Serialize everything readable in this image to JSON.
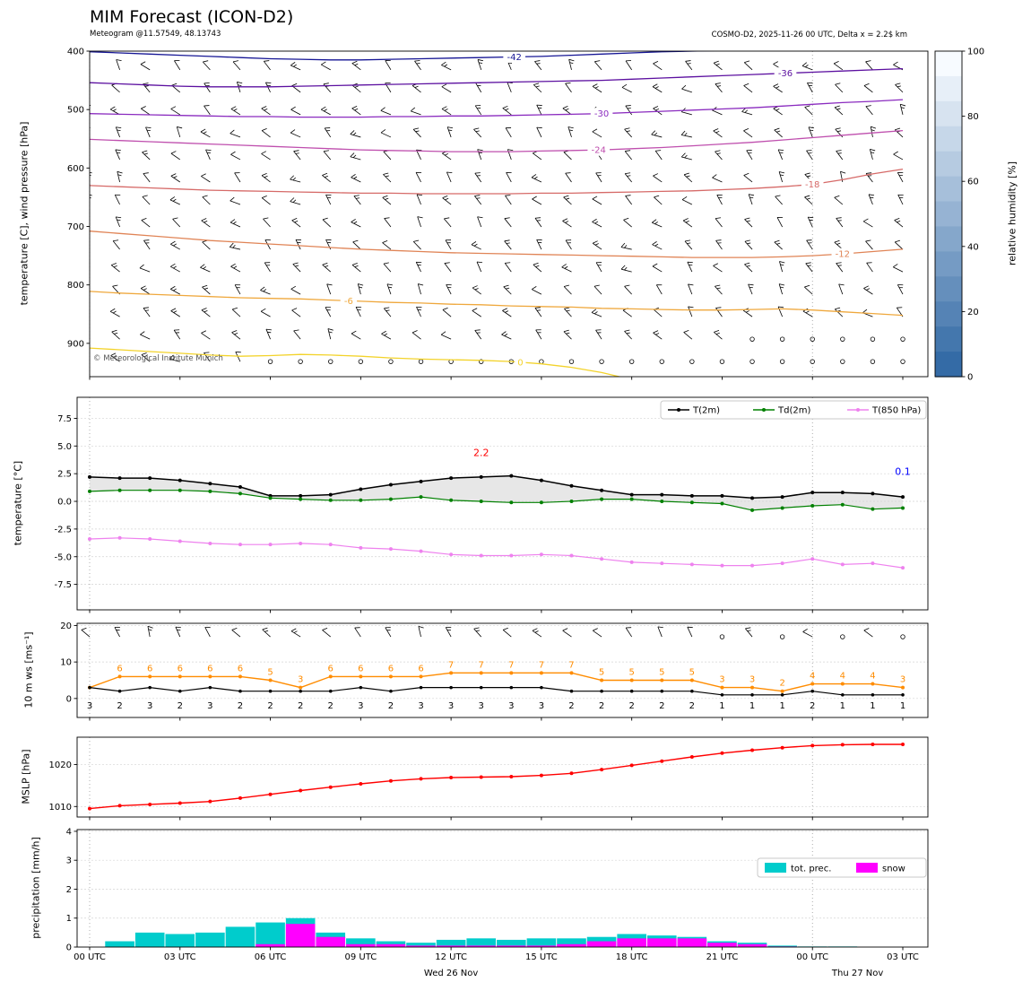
{
  "header": {
    "title": "MIM Forecast (ICON-D2)",
    "subtitle_left": "Meteogram @11.57549, 48.13743",
    "subtitle_right": "COSMO-D2, 2025-11-26 00 UTC, Delta x = 2.2$ km",
    "copyright": "© Meteorological Institute Munich"
  },
  "time_axis": {
    "tick_hours": [
      0,
      3,
      6,
      9,
      12,
      15,
      18,
      21,
      24,
      27
    ],
    "tick_labels": [
      "00 UTC",
      "03 UTC",
      "06 UTC",
      "09 UTC",
      "12 UTC",
      "15 UTC",
      "18 UTC",
      "21 UTC",
      "00 UTC",
      "03 UTC"
    ],
    "day_labels": [
      {
        "text": "Wed 26 Nov",
        "hour": 12
      },
      {
        "text": "Thu 27 Nov",
        "hour": 25.5
      }
    ]
  },
  "chart_data": [
    {
      "type": "contour+windbarbs",
      "name": "upper-air",
      "ylabel": "temperature [C], wind pressure [hPa]",
      "yticks": [
        400,
        500,
        600,
        700,
        800,
        900
      ],
      "ytick_labels": [
        "400",
        "500",
        "600",
        "700",
        "800",
        "900"
      ],
      "ylim": [
        400,
        957
      ],
      "contours": [
        {
          "label": "-42",
          "color": "#161695",
          "label_hour": 14.1,
          "pressures": [
            401,
            403,
            405,
            407,
            409,
            411,
            413,
            414,
            415,
            415,
            414,
            413,
            412,
            411,
            410,
            409,
            407,
            405,
            403,
            401,
            400,
            399,
            398,
            397,
            396,
            394,
            392,
            390
          ]
        },
        {
          "label": "-36",
          "color": "#5c10a0",
          "label_hour": 23.1,
          "pressures": [
            454,
            456,
            458,
            460,
            461,
            461,
            461,
            460,
            459,
            458,
            457,
            456,
            455,
            454,
            453,
            452,
            451,
            450,
            448,
            446,
            444,
            442,
            440,
            438,
            436,
            434,
            432,
            430
          ]
        },
        {
          "label": "-30",
          "color": "#8a2bbf",
          "label_hour": 17.0,
          "pressures": [
            507,
            508,
            509,
            510,
            511,
            512,
            512,
            513,
            513,
            513,
            512,
            512,
            511,
            511,
            510,
            509,
            508,
            507,
            505,
            503,
            501,
            499,
            497,
            494,
            491,
            488,
            486,
            483
          ]
        },
        {
          "label": "-24",
          "color": "#bf4fae",
          "label_hour": 16.9,
          "pressures": [
            551,
            553,
            555,
            557,
            559,
            561,
            563,
            565,
            567,
            569,
            570,
            571,
            572,
            572,
            572,
            571,
            570,
            569,
            567,
            565,
            562,
            559,
            556,
            552,
            548,
            544,
            540,
            536
          ]
        },
        {
          "label": "-18",
          "color": "#d66a68",
          "label_hour": 24.0,
          "pressures": [
            630,
            632,
            634,
            636,
            638,
            639,
            640,
            641,
            642,
            643,
            643,
            644,
            644,
            644,
            644,
            643,
            643,
            642,
            641,
            640,
            639,
            637,
            635,
            632,
            628,
            620,
            610,
            602
          ]
        },
        {
          "label": "-12",
          "color": "#e08456",
          "label_hour": 25.0,
          "pressures": [
            708,
            712,
            716,
            720,
            724,
            727,
            730,
            733,
            736,
            739,
            741,
            743,
            745,
            746,
            747,
            748,
            749,
            750,
            751,
            752,
            753,
            753,
            753,
            752,
            750,
            747,
            743,
            739
          ]
        },
        {
          "label": "-6",
          "color": "#efa83d",
          "label_hour": 8.6,
          "pressures": [
            811,
            814,
            816,
            818,
            820,
            822,
            823,
            824,
            826,
            828,
            830,
            831,
            833,
            834,
            836,
            837,
            838,
            840,
            841,
            842,
            843,
            843,
            842,
            841,
            843,
            846,
            849,
            852
          ]
        },
        {
          "label": "0",
          "color": "#f3d32b",
          "label_hour": 14.3,
          "pressures": [
            908,
            911,
            914,
            917,
            920,
            922,
            921,
            919,
            920,
            922,
            925,
            927,
            928,
            929,
            931,
            935,
            941,
            950,
            962,
            null,
            null,
            null,
            null,
            null,
            null,
            null,
            null,
            null
          ]
        }
      ],
      "windbarbs": {
        "rows": 14,
        "cols": 28,
        "top_pressure": 432,
        "row_step": 38.4,
        "calm_rows": [
          {
            "row": 12,
            "from_col": 22
          },
          {
            "row": 13,
            "from_col": 6
          }
        ]
      },
      "colorbar": {
        "label": "relative humidity [%]",
        "ticks": [
          0,
          20,
          40,
          60,
          80,
          100
        ],
        "tick_labels": [
          "0",
          "20",
          "40",
          "60",
          "80",
          "100"
        ],
        "color_light": "#f7fbff",
        "color_dark": "#346ba6",
        "steps": 13
      }
    },
    {
      "type": "line",
      "name": "temperature-2m",
      "ylabel": "temperature [°C]",
      "yticks": [
        7.5,
        5.0,
        2.5,
        0.0,
        -2.5,
        -5.0,
        -7.5
      ],
      "ytick_labels": [
        "7.5",
        "5.0",
        "2.5",
        "0.0",
        "-2.5",
        "-5.0",
        "-7.5"
      ],
      "ylim": [
        -9.8,
        9.4
      ],
      "series": [
        {
          "name": "T(2m)",
          "color": "#000000",
          "values": [
            2.2,
            2.1,
            2.1,
            1.9,
            1.6,
            1.3,
            0.5,
            0.5,
            0.6,
            1.1,
            1.5,
            1.8,
            2.1,
            2.2,
            2.3,
            1.9,
            1.4,
            1.0,
            0.6,
            0.6,
            0.5,
            0.5,
            0.3,
            0.4,
            0.8,
            0.8,
            0.7,
            0.4
          ]
        },
        {
          "name": "Td(2m)",
          "color": "#008000",
          "values": [
            0.9,
            1.0,
            1.0,
            1.0,
            0.9,
            0.7,
            0.3,
            0.2,
            0.1,
            0.1,
            0.2,
            0.4,
            0.1,
            0.0,
            -0.1,
            -0.1,
            0.0,
            0.2,
            0.2,
            0.0,
            -0.1,
            -0.2,
            -0.8,
            -0.6,
            -0.4,
            -0.3,
            -0.7,
            -0.6
          ]
        },
        {
          "name": "T(850 hPa)",
          "color": "#ee82ee",
          "values": [
            -3.4,
            -3.3,
            -3.4,
            -3.6,
            -3.8,
            -3.9,
            -3.9,
            -3.8,
            -3.9,
            -4.2,
            -4.3,
            -4.5,
            -4.8,
            -4.9,
            -4.9,
            -4.8,
            -4.9,
            -5.2,
            -5.5,
            -5.6,
            -5.7,
            -5.8,
            -5.8,
            -5.6,
            -5.2,
            -5.7,
            -5.6,
            -6.0
          ]
        }
      ],
      "fill_between": {
        "upper": "T(2m)",
        "lower": "Td(2m)",
        "color": "#d3d3d3"
      },
      "annotations": [
        {
          "text": "2.2",
          "color": "#ff0000",
          "hour": 13,
          "value": 4.1
        },
        {
          "text": "0.1",
          "color": "#0000ff",
          "hour": 27,
          "value": 2.4
        }
      ],
      "legend_position": "top-right"
    },
    {
      "type": "line+windbarbs",
      "name": "wind-10m",
      "ylabel": "10 m ws [ms⁻¹]",
      "yticks": [
        0,
        10,
        20
      ],
      "ytick_labels": [
        "0",
        "10",
        "20"
      ],
      "ylim": [
        -5.2,
        20.6
      ],
      "series": [
        {
          "name": "wind-gust",
          "color": "#ff8c00",
          "values": [
            3,
            6,
            6,
            6,
            6,
            6,
            5,
            3,
            6,
            6,
            6,
            6,
            7,
            7,
            7,
            7,
            7,
            5,
            5,
            5,
            5,
            3,
            3,
            2,
            4,
            4,
            4,
            3
          ],
          "point_labels_from": 1
        },
        {
          "name": "wind-mean",
          "color": "#000000",
          "values": [
            3,
            2,
            3,
            2,
            3,
            2,
            2,
            2,
            2,
            3,
            2,
            3,
            3,
            3,
            3,
            3,
            2,
            2,
            2,
            2,
            2,
            1,
            1,
            1,
            2,
            1,
            1,
            1
          ],
          "point_labels_from": 0
        }
      ],
      "barb_row_value": 16.9,
      "calm_hours": [
        21,
        23,
        25,
        27
      ]
    },
    {
      "type": "line",
      "name": "mslp",
      "ylabel": "MSLP [hPa]",
      "yticks": [
        1010,
        1020
      ],
      "ytick_labels": [
        "1010",
        "1020"
      ],
      "ylim": [
        1007.5,
        1026.5
      ],
      "series": [
        {
          "name": "MSLP",
          "color": "#ff0000",
          "values": [
            1009.5,
            1010.2,
            1010.5,
            1010.8,
            1011.2,
            1012.0,
            1012.9,
            1013.8,
            1014.6,
            1015.4,
            1016.1,
            1016.6,
            1016.9,
            1017.0,
            1017.1,
            1017.4,
            1017.9,
            1018.8,
            1019.8,
            1020.8,
            1021.8,
            1022.7,
            1023.4,
            1024.0,
            1024.5,
            1024.7,
            1024.8,
            1024.8
          ]
        }
      ]
    },
    {
      "type": "bar",
      "name": "precipitation",
      "ylabel": "precipitation [mm/h]",
      "yticks": [
        0,
        1,
        2,
        3,
        4
      ],
      "ytick_labels": [
        "0",
        "1",
        "2",
        "3",
        "4"
      ],
      "ylim": [
        0,
        4.06
      ],
      "series": [
        {
          "name": "tot. prec.",
          "color": "#00cccc",
          "values": [
            0,
            0.2,
            0.5,
            0.45,
            0.5,
            0.7,
            0.85,
            1.0,
            0.5,
            0.3,
            0.2,
            0.15,
            0.25,
            0.3,
            0.25,
            0.3,
            0.3,
            0.35,
            0.45,
            0.4,
            0.35,
            0.2,
            0.15,
            0.05,
            0.02,
            0.02,
            0,
            0
          ]
        },
        {
          "name": "snow",
          "color": "#ff00ff",
          "values": [
            0,
            0,
            0,
            0,
            0,
            0,
            0.1,
            0.8,
            0.35,
            0.1,
            0.1,
            0.05,
            0.05,
            0.05,
            0.05,
            0.05,
            0.1,
            0.2,
            0.3,
            0.3,
            0.3,
            0.15,
            0.1,
            0.02,
            0,
            0,
            0,
            0
          ]
        }
      ]
    }
  ]
}
